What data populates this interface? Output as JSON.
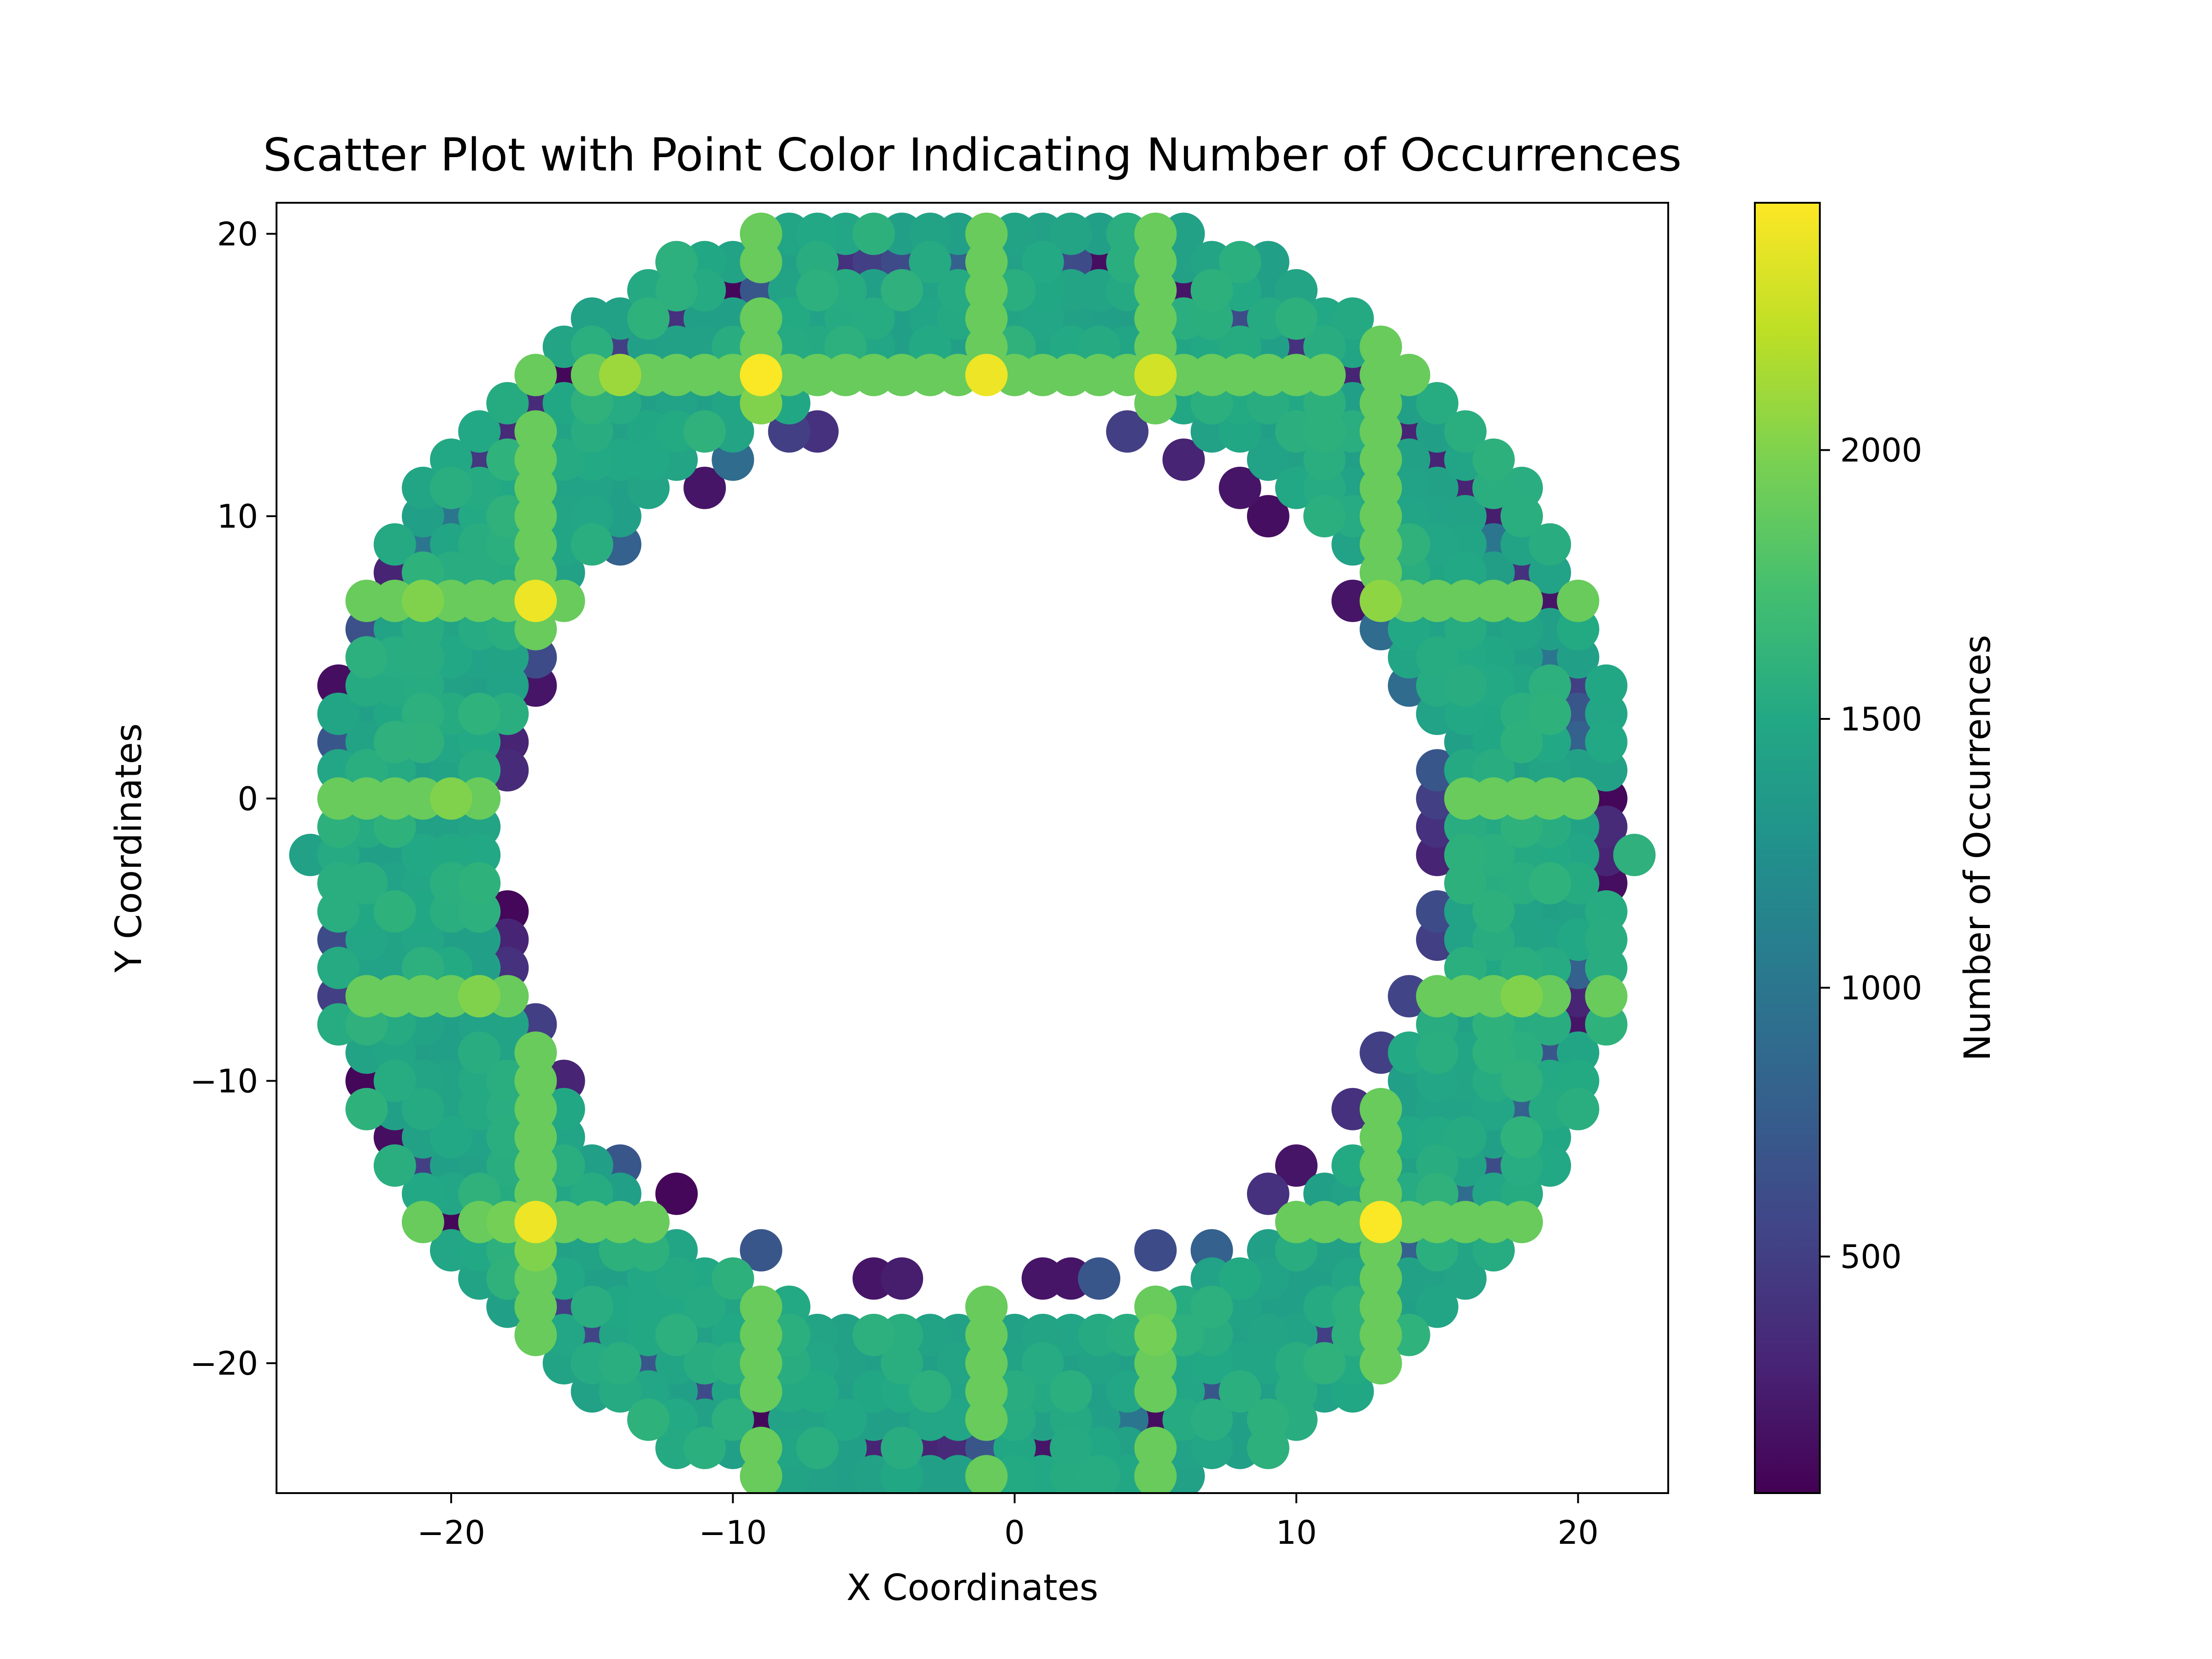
{
  "chart_data": {
    "type": "scatter",
    "title": "Scatter Plot with Point Color Indicating Number of Occurrences",
    "xlabel": "X Coordinates",
    "ylabel": "Y Coordinates",
    "xlim": [
      -26.2,
      23.2
    ],
    "ylim": [
      -24.6,
      21.1
    ],
    "xticks": [
      -20,
      -10,
      0,
      10,
      20
    ],
    "yticks": [
      -20,
      -10,
      0,
      10,
      20
    ],
    "grid": false,
    "colorbar": {
      "label": "Number of Occurrences",
      "range": [
        60,
        2460
      ],
      "ticks": [
        500,
        1000,
        1500,
        2000
      ],
      "colormap": "viridis"
    },
    "ring": {
      "center": [
        -1.5,
        -2
      ],
      "inner_radius": 17,
      "outer_radius": 23.5
    },
    "base_value_range": [
      1400,
      1600
    ],
    "ridge_lines": {
      "value": 1900,
      "x": [
        -17,
        -9,
        -1,
        5,
        13
      ],
      "y": [
        15,
        7,
        0,
        -7,
        -15
      ]
    },
    "edge_points": [
      {
        "x": -24,
        "y": 4,
        "v": 150
      },
      {
        "x": -24,
        "y": 2,
        "v": 700
      },
      {
        "x": -24,
        "y": -5,
        "v": 600
      },
      {
        "x": -24,
        "y": -7,
        "v": 500
      },
      {
        "x": -23,
        "y": 6,
        "v": 650
      },
      {
        "x": -23,
        "y": -10,
        "v": 100
      },
      {
        "x": -22,
        "y": 8,
        "v": 300
      },
      {
        "x": -22,
        "y": -12,
        "v": 150
      },
      {
        "x": -21,
        "y": 9,
        "v": 1000
      },
      {
        "x": -21,
        "y": -13,
        "v": 500
      },
      {
        "x": -20,
        "y": -15,
        "v": 100
      },
      {
        "x": -20,
        "y": 10,
        "v": 1000
      },
      {
        "x": -19,
        "y": 12,
        "v": 450
      },
      {
        "x": -18,
        "y": 13,
        "v": 350
      },
      {
        "x": -18,
        "y": 2,
        "v": 300
      },
      {
        "x": -18,
        "y": 1,
        "v": 350
      },
      {
        "x": -18,
        "y": -4,
        "v": 100
      },
      {
        "x": -18,
        "y": -5,
        "v": 300
      },
      {
        "x": -18,
        "y": -6,
        "v": 400
      },
      {
        "x": -17,
        "y": 14,
        "v": 350
      },
      {
        "x": -17,
        "y": 5,
        "v": 600
      },
      {
        "x": -17,
        "y": 4,
        "v": 200
      },
      {
        "x": -17,
        "y": -8,
        "v": 500
      },
      {
        "x": -16,
        "y": 15,
        "v": 100
      },
      {
        "x": -16,
        "y": -10,
        "v": 300
      },
      {
        "x": -16,
        "y": -18,
        "v": 500
      },
      {
        "x": -15,
        "y": -19,
        "v": 550
      },
      {
        "x": -14,
        "y": 16,
        "v": 500
      },
      {
        "x": -14,
        "y": 9,
        "v": 800
      },
      {
        "x": -14,
        "y": -13,
        "v": 700
      },
      {
        "x": -13,
        "y": -20,
        "v": 700
      },
      {
        "x": -12,
        "y": 17,
        "v": 400
      },
      {
        "x": -12,
        "y": -14,
        "v": 100
      },
      {
        "x": -11,
        "y": 11,
        "v": 200
      },
      {
        "x": -11,
        "y": -21,
        "v": 600
      },
      {
        "x": -10,
        "y": 18,
        "v": 100
      },
      {
        "x": -10,
        "y": 12,
        "v": 900
      },
      {
        "x": -9,
        "y": 18,
        "v": 700
      },
      {
        "x": -9,
        "y": -16,
        "v": 700
      },
      {
        "x": -9,
        "y": -22,
        "v": 100
      },
      {
        "x": -8,
        "y": 13,
        "v": 500
      },
      {
        "x": -7,
        "y": 13,
        "v": 400
      },
      {
        "x": -6,
        "y": 19,
        "v": 400
      },
      {
        "x": -5,
        "y": 19,
        "v": 500
      },
      {
        "x": -5,
        "y": -17,
        "v": 200
      },
      {
        "x": -5,
        "y": -23,
        "v": 300
      },
      {
        "x": -4,
        "y": 19,
        "v": 600
      },
      {
        "x": -4,
        "y": -17,
        "v": 250
      },
      {
        "x": -3,
        "y": -23,
        "v": 300
      },
      {
        "x": -2,
        "y": -23,
        "v": 350
      },
      {
        "x": -1,
        "y": -23,
        "v": 700
      },
      {
        "x": -2,
        "y": 19,
        "v": 800
      },
      {
        "x": 1,
        "y": -17,
        "v": 200
      },
      {
        "x": 1,
        "y": -23,
        "v": 200
      },
      {
        "x": 2,
        "y": 19,
        "v": 600
      },
      {
        "x": 2,
        "y": -17,
        "v": 200
      },
      {
        "x": 3,
        "y": 19,
        "v": 150
      },
      {
        "x": 3,
        "y": -17,
        "v": 700
      },
      {
        "x": 4,
        "y": 13,
        "v": 500
      },
      {
        "x": 4,
        "y": -22,
        "v": 1000
      },
      {
        "x": 5,
        "y": -16,
        "v": 600
      },
      {
        "x": 5,
        "y": -22,
        "v": 150
      },
      {
        "x": 6,
        "y": 18,
        "v": 200
      },
      {
        "x": 6,
        "y": 12,
        "v": 300
      },
      {
        "x": 7,
        "y": -16,
        "v": 800
      },
      {
        "x": 7,
        "y": -21,
        "v": 700
      },
      {
        "x": 8,
        "y": 17,
        "v": 600
      },
      {
        "x": 8,
        "y": 11,
        "v": 200
      },
      {
        "x": 9,
        "y": 10,
        "v": 150
      },
      {
        "x": 9,
        "y": -14,
        "v": 400
      },
      {
        "x": 10,
        "y": 16,
        "v": 400
      },
      {
        "x": 10,
        "y": -13,
        "v": 200
      },
      {
        "x": 11,
        "y": -19,
        "v": 500
      },
      {
        "x": 12,
        "y": 15,
        "v": 300
      },
      {
        "x": 12,
        "y": 7,
        "v": 200
      },
      {
        "x": 12,
        "y": -11,
        "v": 400
      },
      {
        "x": 13,
        "y": 6,
        "v": 900
      },
      {
        "x": 13,
        "y": -9,
        "v": 500
      },
      {
        "x": 14,
        "y": 13,
        "v": 300
      },
      {
        "x": 14,
        "y": 4,
        "v": 900
      },
      {
        "x": 14,
        "y": -7,
        "v": 550
      },
      {
        "x": 14,
        "y": -16,
        "v": 800
      },
      {
        "x": 15,
        "y": 12,
        "v": 300
      },
      {
        "x": 15,
        "y": 1,
        "v": 700
      },
      {
        "x": 15,
        "y": 0,
        "v": 500
      },
      {
        "x": 15,
        "y": -1,
        "v": 400
      },
      {
        "x": 15,
        "y": -2,
        "v": 300
      },
      {
        "x": 15,
        "y": -4,
        "v": 600
      },
      {
        "x": 15,
        "y": -5,
        "v": 500
      },
      {
        "x": 16,
        "y": 11,
        "v": 300
      },
      {
        "x": 16,
        "y": -14,
        "v": 900
      },
      {
        "x": 17,
        "y": 10,
        "v": 250
      },
      {
        "x": 17,
        "y": 9,
        "v": 1000
      },
      {
        "x": 17,
        "y": -13,
        "v": 600
      },
      {
        "x": 18,
        "y": 8,
        "v": 400
      },
      {
        "x": 18,
        "y": -11,
        "v": 800
      },
      {
        "x": 19,
        "y": 7,
        "v": 200
      },
      {
        "x": 19,
        "y": 5,
        "v": 1000
      },
      {
        "x": 19,
        "y": -9,
        "v": 700
      },
      {
        "x": 20,
        "y": 4,
        "v": 500
      },
      {
        "x": 20,
        "y": 3,
        "v": 700
      },
      {
        "x": 20,
        "y": 2,
        "v": 800
      },
      {
        "x": 20,
        "y": -6,
        "v": 800
      },
      {
        "x": 20,
        "y": -7,
        "v": 300
      },
      {
        "x": 20,
        "y": -8,
        "v": 200
      },
      {
        "x": 21,
        "y": 0,
        "v": 100
      },
      {
        "x": 21,
        "y": -1,
        "v": 350
      },
      {
        "x": 21,
        "y": -2,
        "v": 300
      },
      {
        "x": 21,
        "y": -3,
        "v": 150
      }
    ],
    "hot_points": [
      {
        "x": -17,
        "y": 7,
        "v": 2400
      },
      {
        "x": -9,
        "y": 15,
        "v": 2450
      },
      {
        "x": -1,
        "y": 15,
        "v": 2400
      },
      {
        "x": 5,
        "y": 15,
        "v": 2300
      },
      {
        "x": 13,
        "y": 7,
        "v": 2050
      },
      {
        "x": 13,
        "y": -15,
        "v": 2450
      },
      {
        "x": -17,
        "y": -15,
        "v": 2400
      },
      {
        "x": -14,
        "y": 15,
        "v": 2100
      },
      {
        "x": -21,
        "y": 7,
        "v": 2000
      },
      {
        "x": -19,
        "y": -7,
        "v": 2000
      },
      {
        "x": -20,
        "y": 0,
        "v": 2000
      },
      {
        "x": -18,
        "y": -15,
        "v": 1950
      },
      {
        "x": -17,
        "y": -16,
        "v": 2000
      },
      {
        "x": -9,
        "y": 14,
        "v": 2000
      },
      {
        "x": -1,
        "y": -18,
        "v": 1900
      },
      {
        "x": -1,
        "y": -22,
        "v": 1900
      },
      {
        "x": 18,
        "y": -7,
        "v": 2000
      },
      {
        "x": 5,
        "y": -19,
        "v": 1950
      }
    ]
  }
}
